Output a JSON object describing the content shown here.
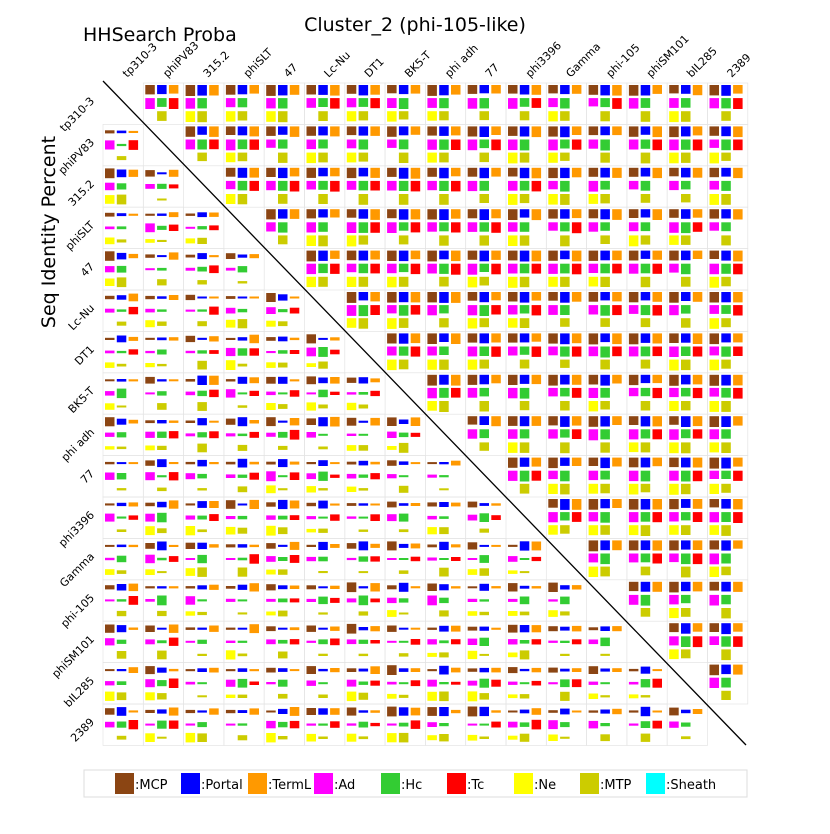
{
  "chart_data": {
    "type": "heatmap",
    "title": "Cluster_2 (phi-105-like)",
    "upper_label": "HHSearch Proba",
    "ylabel": "Seq Identity Percent",
    "upper_triangle_metric": "HHSearch probability",
    "lower_triangle_metric": "Sequence identity percent",
    "phages": [
      "tp310-3",
      "phiPV83",
      "315.2",
      "phiSLT",
      "47",
      "Lc-Nu",
      "DT1",
      "BK5-T",
      "phi adh",
      "77",
      "phi3396",
      "Gamma",
      "phi-105",
      "phiSM101",
      "bIL285",
      "2389"
    ],
    "proteins": [
      {
        "name": "MCP",
        "color": "#8B4513"
      },
      {
        "name": "Portal",
        "color": "#0000FF"
      },
      {
        "name": "TermL",
        "color": "#FF9900"
      },
      {
        "name": "Ad",
        "color": "#FF00FF"
      },
      {
        "name": "Hc",
        "color": "#33CC33"
      },
      {
        "name": "Tc",
        "color": "#FF0000"
      },
      {
        "name": "Ne",
        "color": "#FFFF00"
      },
      {
        "name": "MTP",
        "color": "#CCCC00"
      },
      {
        "name": "Sheath",
        "color": "#00FFFF"
      }
    ],
    "legend": [
      ":MCP",
      ":Portal",
      ":TermL",
      ":Ad",
      ":Hc",
      ":Tc",
      ":Ne",
      ":MTP",
      ":Sheath"
    ],
    "legend_position": "bottom",
    "grid": true
  }
}
